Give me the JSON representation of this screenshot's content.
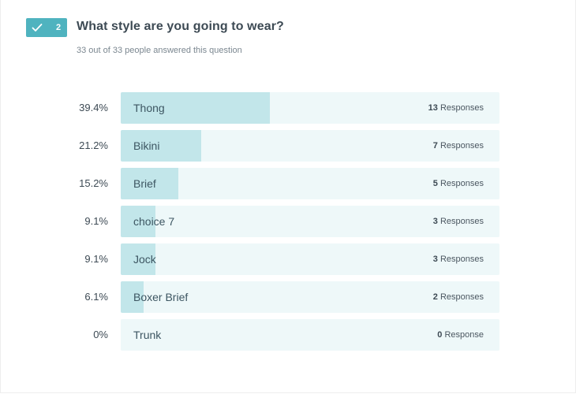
{
  "question": {
    "number": "2",
    "title": "What style are you going to wear?",
    "subtitle": "33 out of 33 people answered this question",
    "badge_color": "#4fb3bf",
    "badge_icon": "check-icon"
  },
  "colors": {
    "bar_track": "#eef8f9",
    "bar_fill": "#c2e6ea",
    "text": "#3d4a54"
  },
  "chart_data": {
    "type": "bar",
    "orientation": "horizontal",
    "categories": [
      "Thong",
      "Bikini",
      "Brief",
      "choice 7",
      "Jock",
      "Boxer Brief",
      "Trunk"
    ],
    "values": [
      13,
      7,
      5,
      3,
      3,
      2,
      0
    ],
    "percentages": [
      "39.4%",
      "21.2%",
      "15.2%",
      "9.1%",
      "9.1%",
      "6.1%",
      "0%"
    ],
    "count_labels": [
      "Responses",
      "Responses",
      "Responses",
      "Responses",
      "Responses",
      "Responses",
      "Response"
    ],
    "total": 33
  }
}
